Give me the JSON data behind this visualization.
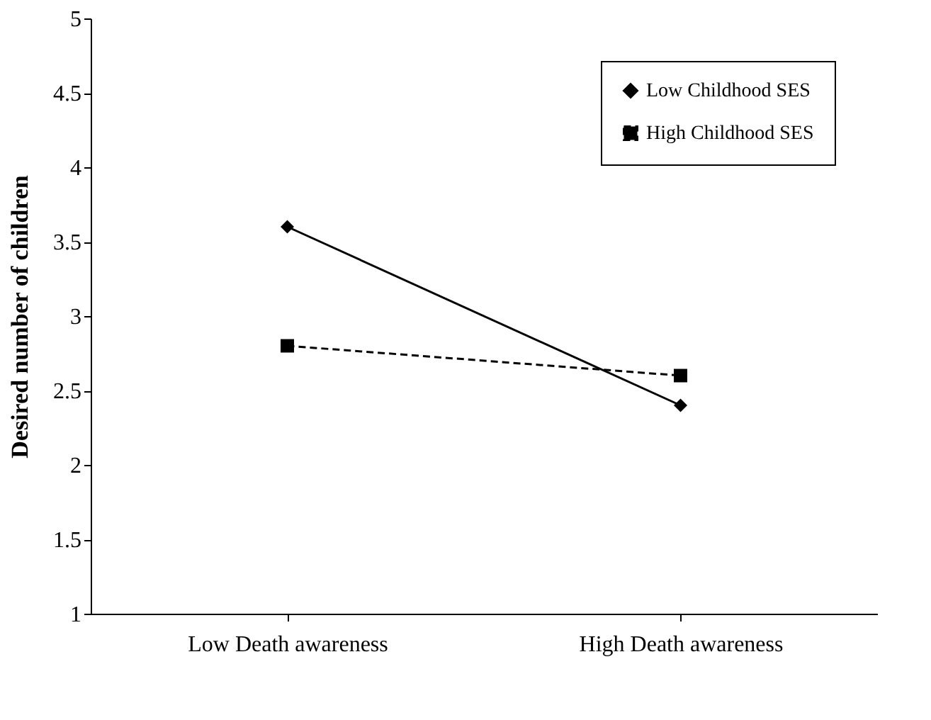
{
  "chart_data": {
    "type": "line",
    "ylabel": "Desired number of children",
    "categories": [
      "Low Death awareness",
      "High Death awareness"
    ],
    "series": [
      {
        "name": "Low Childhood SES",
        "color": "#000000",
        "values": [
          3.6,
          2.4
        ],
        "marker": "diamond",
        "line_style": "solid"
      },
      {
        "name": "High Childhood SES",
        "color": "#000000",
        "values": [
          2.8,
          2.6
        ],
        "marker": "square",
        "line_style": "dashed"
      }
    ],
    "ylim": [
      1,
      5
    ],
    "yticks": [
      1,
      1.5,
      2,
      2.5,
      3,
      3.5,
      4,
      4.5,
      5
    ],
    "grid": false,
    "legend": "top right"
  }
}
